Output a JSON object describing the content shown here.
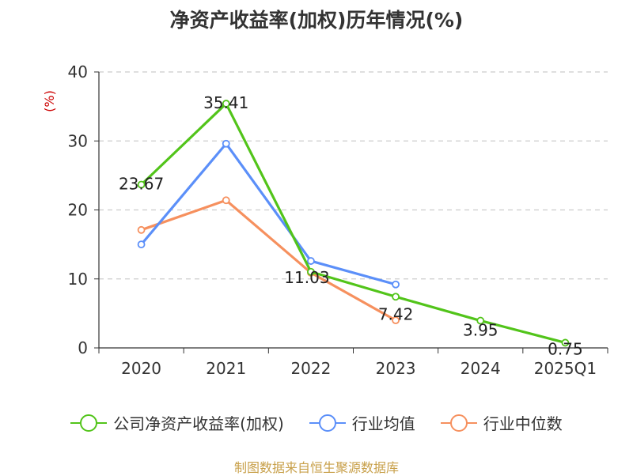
{
  "chart_data": {
    "type": "line",
    "title": "净资产收益率(加权)历年情况(%)",
    "ylabel": "(%)",
    "xlabel": "",
    "categories": [
      "2020",
      "2021",
      "2022",
      "2023",
      "2024",
      "2025Q1"
    ],
    "ylim": [
      0,
      40
    ],
    "yticks": [
      0,
      10,
      20,
      30,
      40
    ],
    "grid": true,
    "legend_position": "bottom",
    "series": [
      {
        "name": "公司净资产收益率(加权)",
        "color": "#52c41a",
        "values": [
          23.67,
          35.41,
          11.03,
          7.42,
          3.95,
          0.75
        ],
        "labels": [
          "23.67",
          "35.41",
          "11.03",
          "7.42",
          "3.95",
          "0.75"
        ]
      },
      {
        "name": "行业均值",
        "color": "#5b8ff9",
        "values": [
          15.0,
          29.6,
          12.6,
          9.2,
          null,
          null
        ]
      },
      {
        "name": "行业中位数",
        "color": "#f6905e",
        "values": [
          17.1,
          21.4,
          10.9,
          4.0,
          null,
          null
        ]
      }
    ]
  },
  "source_note": "制图数据来自恒生聚源数据库"
}
